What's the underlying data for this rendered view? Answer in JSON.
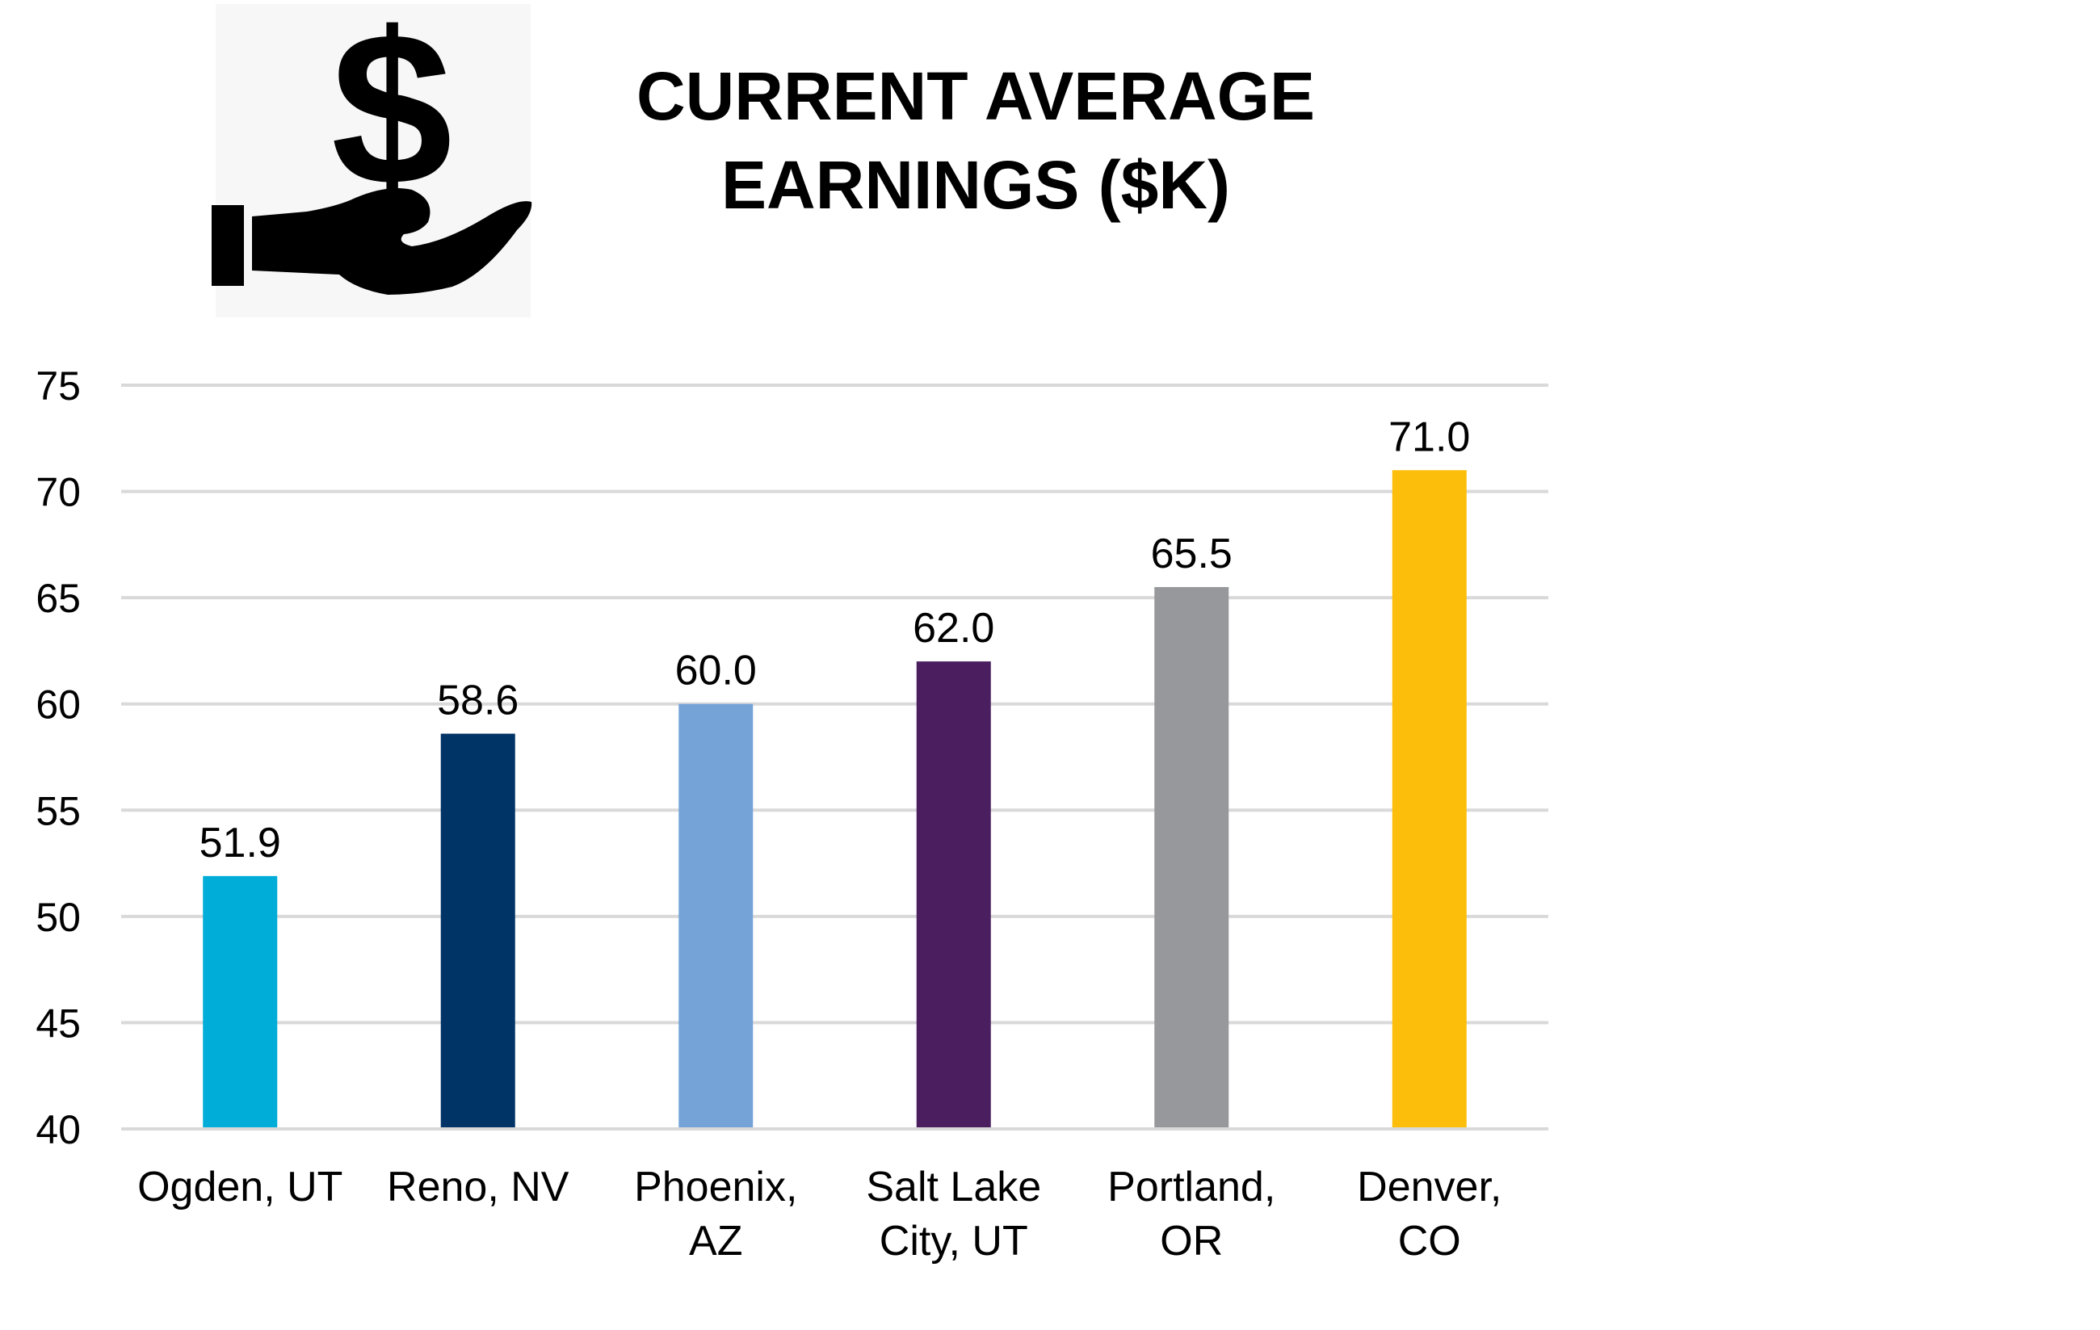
{
  "chart_data": {
    "type": "bar",
    "title_lines": [
      "CURRENT AVERAGE",
      "EARNINGS ($K)"
    ],
    "icon": "hand-holding-dollar-icon",
    "categories": [
      [
        "Ogden, UT"
      ],
      [
        "Reno, NV"
      ],
      [
        "Phoenix,",
        "AZ"
      ],
      [
        "Salt Lake",
        "City, UT"
      ],
      [
        "Portland,",
        "OR"
      ],
      [
        "Denver,",
        "CO"
      ]
    ],
    "values": [
      51.9,
      58.6,
      60.0,
      62.0,
      65.5,
      71.0
    ],
    "data_labels": [
      "51.9",
      "58.6",
      "60.0",
      "62.0",
      "65.5",
      "71.0"
    ],
    "colors": [
      "#00ADD8",
      "#003366",
      "#75A3D8",
      "#4A1E5F",
      "#97989C",
      "#FDBE0B"
    ],
    "ylim": [
      40,
      75
    ],
    "yticks": [
      "40",
      "45",
      "50",
      "55",
      "60",
      "65",
      "70",
      "75"
    ],
    "grid": true,
    "gridline_color": "#D9D9D9",
    "xlabel": "",
    "ylabel": ""
  }
}
